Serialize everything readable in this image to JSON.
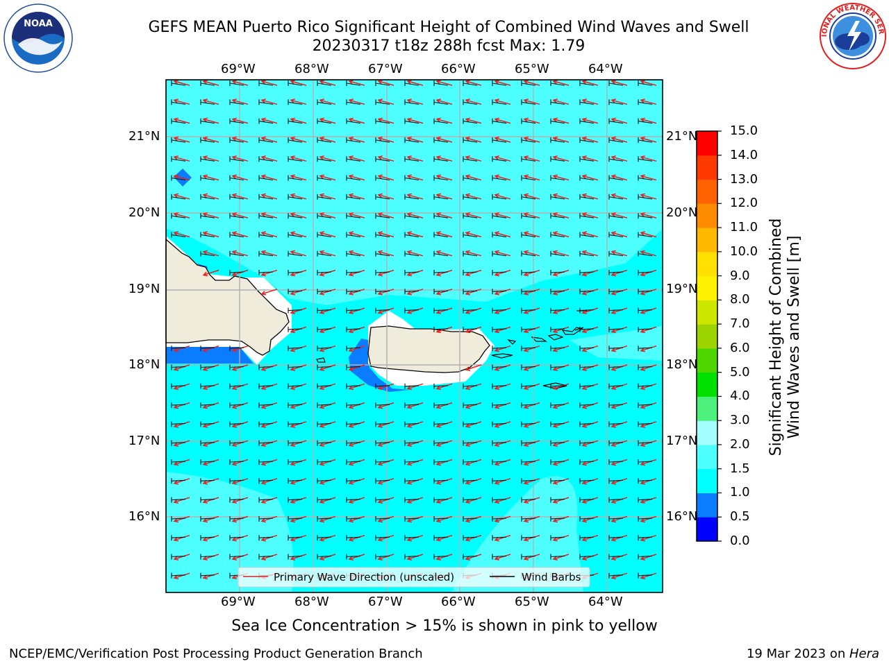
{
  "header": {
    "title_line1": "GEFS MEAN Puerto Rico Significant Height of Combined Wind Waves and Swell",
    "title_line2": "20230317 t18z 288h fcst   Max: 1.79"
  },
  "logos": {
    "left_name": "NOAA",
    "left_ring_text": "NATIONAL OCEANIC AND ATMOSPHERIC ADMINISTRATION · U.S. DEPARTMENT OF COMMERCE",
    "right_ring_text": "NATIONAL WEATHER SERVICE"
  },
  "map": {
    "lon_labels": [
      "69°W",
      "68°W",
      "67°W",
      "66°W",
      "65°W",
      "64°W"
    ],
    "lat_labels": [
      "21°N",
      "20°N",
      "19°N",
      "18°N",
      "17°N",
      "16°N"
    ],
    "legend": {
      "wave_label": "Primary Wave Direction (unscaled)",
      "barb_label": "Wind Barbs"
    }
  },
  "colorbar": {
    "label_line1": "Significant Height of Combined",
    "label_line2": "Wind Waves and Swell [m]",
    "ticks": [
      "0.0",
      "0.5",
      "1.0",
      "1.5",
      "2.0",
      "3.0",
      "4.0",
      "5.0",
      "6.0",
      "7.0",
      "8.0",
      "9.0",
      "10.0",
      "11.0",
      "12.0",
      "13.0",
      "14.0",
      "15.0"
    ],
    "colors": [
      "#0000ff",
      "#0a7cff",
      "#00ffff",
      "#4dffff",
      "#a6ffff",
      "#4cf07a",
      "#00e000",
      "#4fd500",
      "#9bd400",
      "#cde600",
      "#fff200",
      "#ffe000",
      "#ffb800",
      "#ff8c00",
      "#ff6200",
      "#ff3a00",
      "#ff0000"
    ]
  },
  "note": "Sea Ice Concentration > 15% is shown in pink to yellow",
  "footer": {
    "left": "NCEP/EMC/Verification Post Processing Product Generation Branch",
    "right_date": "19 Mar 2023 on ",
    "right_host": "Hera"
  }
}
